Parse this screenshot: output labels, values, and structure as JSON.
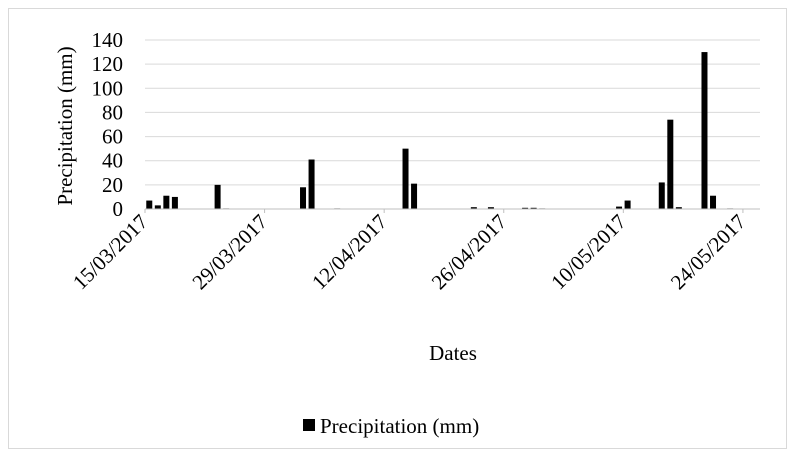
{
  "chart_data": {
    "type": "bar",
    "title": "",
    "xlabel": "Dates",
    "ylabel": "Precipitation (mm)",
    "ylim": [
      0,
      140
    ],
    "y_ticks": [
      0,
      20,
      40,
      60,
      80,
      100,
      120,
      140
    ],
    "x_tick_labels": [
      "15/03/2017",
      "29/03/2017",
      "12/04/2017",
      "26/04/2017",
      "10/05/2017",
      "24/05/2017"
    ],
    "x_range": [
      "2017-03-15",
      "2017-05-26"
    ],
    "grid": "horizontal",
    "legend_position": "bottom",
    "series": [
      {
        "name": "Precipitation (mm)",
        "color": "#000000",
        "points": [
          {
            "date": "2017-03-15",
            "value": 7
          },
          {
            "date": "2017-03-16",
            "value": 3
          },
          {
            "date": "2017-03-17",
            "value": 11
          },
          {
            "date": "2017-03-18",
            "value": 10
          },
          {
            "date": "2017-03-23",
            "value": 20
          },
          {
            "date": "2017-03-24",
            "value": 0.5
          },
          {
            "date": "2017-04-02",
            "value": 18
          },
          {
            "date": "2017-04-03",
            "value": 41
          },
          {
            "date": "2017-04-06",
            "value": 0.5
          },
          {
            "date": "2017-04-14",
            "value": 50
          },
          {
            "date": "2017-04-15",
            "value": 21
          },
          {
            "date": "2017-04-22",
            "value": 1.5
          },
          {
            "date": "2017-04-24",
            "value": 1.5
          },
          {
            "date": "2017-04-28",
            "value": 1
          },
          {
            "date": "2017-04-29",
            "value": 1
          },
          {
            "date": "2017-04-30",
            "value": 0.5
          },
          {
            "date": "2017-05-09",
            "value": 2
          },
          {
            "date": "2017-05-10",
            "value": 7
          },
          {
            "date": "2017-05-14",
            "value": 22
          },
          {
            "date": "2017-05-15",
            "value": 74
          },
          {
            "date": "2017-05-16",
            "value": 1.5
          },
          {
            "date": "2017-05-19",
            "value": 130
          },
          {
            "date": "2017-05-20",
            "value": 11
          },
          {
            "date": "2017-05-22",
            "value": 0.5
          }
        ]
      }
    ]
  }
}
